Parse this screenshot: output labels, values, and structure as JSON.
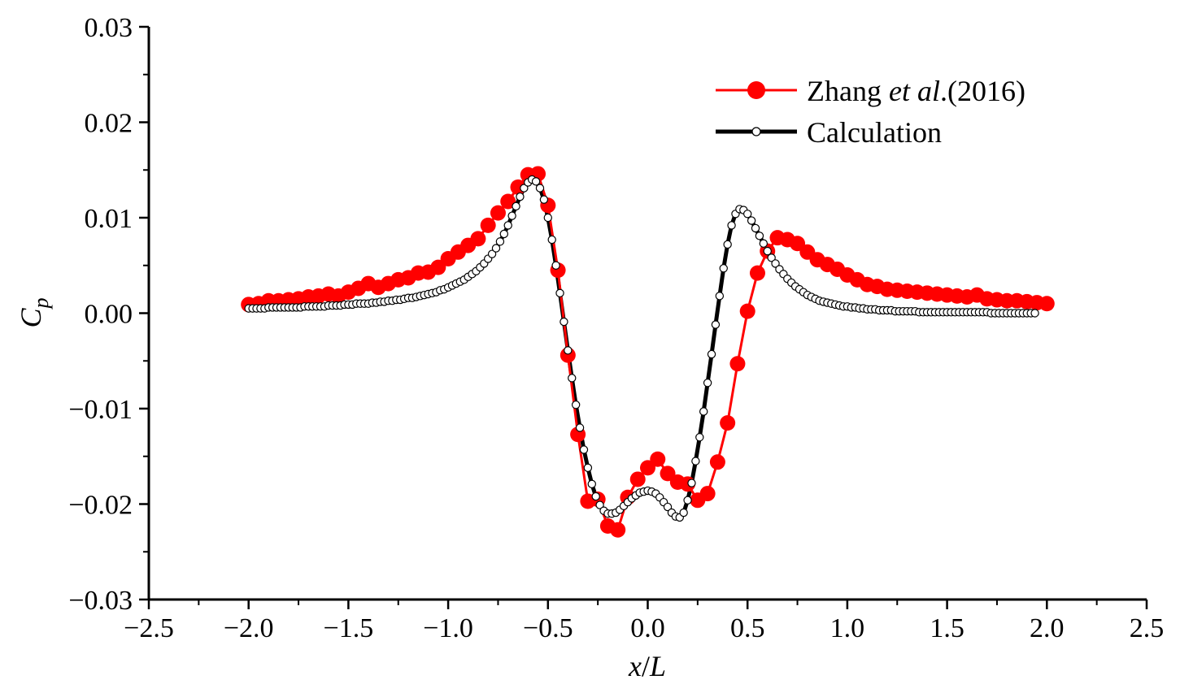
{
  "chart_data": {
    "type": "line",
    "title": "",
    "xlabel": {
      "main": "x",
      "sep": "/",
      "second": "L"
    },
    "ylabel": {
      "main": "C",
      "sub": "p"
    },
    "xlim": [
      -2.5,
      2.5
    ],
    "ylim": [
      -0.03,
      0.03
    ],
    "xticks": [
      -2.5,
      -2.0,
      -1.5,
      -1.0,
      -0.5,
      0.0,
      0.5,
      1.0,
      1.5,
      2.0,
      2.5
    ],
    "xtick_labels": [
      "−2.5",
      "−2.0",
      "−1.5",
      "−1.0",
      "−0.5",
      "0.0",
      "0.5",
      "1.0",
      "1.5",
      "2.0",
      "2.5"
    ],
    "yticks": [
      -0.03,
      -0.02,
      -0.01,
      0.0,
      0.01,
      0.02,
      0.03
    ],
    "ytick_labels": [
      "−0.03",
      "−0.02",
      "−0.01",
      "0.00",
      "0.01",
      "0.02",
      "0.03"
    ],
    "grid": false,
    "legend_position": "top-right",
    "series": [
      {
        "name": "Zhang et al.(2016)",
        "legend_parts": [
          "Zhang ",
          "et al",
          ".(2016)"
        ],
        "color": "#ff0000",
        "marker": "filled-circle",
        "x": [
          -2.0,
          -1.95,
          -1.9,
          -1.85,
          -1.8,
          -1.75,
          -1.7,
          -1.65,
          -1.6,
          -1.55,
          -1.5,
          -1.45,
          -1.4,
          -1.35,
          -1.3,
          -1.25,
          -1.2,
          -1.15,
          -1.1,
          -1.05,
          -1.0,
          -0.95,
          -0.9,
          -0.85,
          -0.8,
          -0.75,
          -0.7,
          -0.65,
          -0.6,
          -0.55,
          -0.5,
          -0.45,
          -0.4,
          -0.35,
          -0.3,
          -0.25,
          -0.2,
          -0.15,
          -0.1,
          -0.05,
          0.0,
          0.05,
          0.1,
          0.15,
          0.2,
          0.25,
          0.3,
          0.35,
          0.4,
          0.45,
          0.5,
          0.55,
          0.6,
          0.65,
          0.7,
          0.75,
          0.8,
          0.85,
          0.9,
          0.95,
          1.0,
          1.05,
          1.1,
          1.15,
          1.2,
          1.25,
          1.3,
          1.35,
          1.4,
          1.45,
          1.5,
          1.55,
          1.6,
          1.65,
          1.7,
          1.75,
          1.8,
          1.85,
          1.9,
          1.95,
          2.0
        ],
        "values": [
          0.0009,
          0.001,
          0.0013,
          0.0013,
          0.0014,
          0.0015,
          0.0017,
          0.0018,
          0.002,
          0.0018,
          0.0022,
          0.0026,
          0.0031,
          0.0027,
          0.0031,
          0.0035,
          0.0037,
          0.0042,
          0.0043,
          0.0048,
          0.0057,
          0.0064,
          0.0071,
          0.0078,
          0.0092,
          0.0105,
          0.0117,
          0.0132,
          0.0145,
          0.0146,
          0.0113,
          0.0045,
          -0.0044,
          -0.0127,
          -0.0197,
          -0.0195,
          -0.0223,
          -0.0227,
          -0.0193,
          -0.0174,
          -0.0162,
          -0.0153,
          -0.0168,
          -0.0177,
          -0.0179,
          -0.0196,
          -0.0189,
          -0.0156,
          -0.0115,
          -0.0053,
          0.0002,
          0.0042,
          0.0065,
          0.0079,
          0.0077,
          0.0073,
          0.0064,
          0.0056,
          0.0051,
          0.0046,
          0.004,
          0.0035,
          0.003,
          0.0028,
          0.0025,
          0.0024,
          0.0023,
          0.0022,
          0.0021,
          0.002,
          0.0019,
          0.0018,
          0.0017,
          0.0019,
          0.0015,
          0.0014,
          0.0013,
          0.0013,
          0.0012,
          0.0011,
          0.001
        ]
      },
      {
        "name": "Calculation",
        "legend_parts": [
          "Calculation"
        ],
        "color": "#000000",
        "marker": "open-circle",
        "x_start": -2.0,
        "x_step": 0.02,
        "values": [
          0.0005,
          0.0005,
          0.0005,
          0.0005,
          0.0005,
          0.0006,
          0.0006,
          0.0006,
          0.0006,
          0.0006,
          0.0006,
          0.0006,
          0.0006,
          0.0006,
          0.0007,
          0.0007,
          0.0007,
          0.0007,
          0.0007,
          0.0007,
          0.0008,
          0.0008,
          0.0008,
          0.0008,
          0.0009,
          0.0009,
          0.0009,
          0.001,
          0.001,
          0.001,
          0.001,
          0.0011,
          0.0011,
          0.0012,
          0.0012,
          0.0013,
          0.0013,
          0.0014,
          0.0014,
          0.0015,
          0.0016,
          0.0016,
          0.0017,
          0.0018,
          0.0019,
          0.002,
          0.0021,
          0.0022,
          0.0024,
          0.0025,
          0.0027,
          0.0029,
          0.0031,
          0.0033,
          0.0035,
          0.0038,
          0.0041,
          0.0044,
          0.0048,
          0.0052,
          0.0057,
          0.0062,
          0.0068,
          0.0075,
          0.0083,
          0.0092,
          0.0102,
          0.0112,
          0.0122,
          0.0131,
          0.0137,
          0.014,
          0.0138,
          0.0131,
          0.0119,
          0.01,
          0.0077,
          0.005,
          0.0021,
          -0.0009,
          -0.0039,
          -0.0068,
          -0.0096,
          -0.012,
          -0.0143,
          -0.0162,
          -0.0179,
          -0.0192,
          -0.0201,
          -0.0207,
          -0.021,
          -0.021,
          -0.0209,
          -0.0206,
          -0.0202,
          -0.0198,
          -0.0194,
          -0.0191,
          -0.0188,
          -0.0187,
          -0.0186,
          -0.0187,
          -0.0189,
          -0.0193,
          -0.0198,
          -0.0203,
          -0.0209,
          -0.0213,
          -0.0214,
          -0.0209,
          -0.0196,
          -0.0178,
          -0.0155,
          -0.013,
          -0.0103,
          -0.0073,
          -0.0043,
          -0.0012,
          0.0018,
          0.0047,
          0.0072,
          0.0092,
          0.0104,
          0.0109,
          0.0108,
          0.0104,
          0.0097,
          0.0089,
          0.0081,
          0.0073,
          0.0065,
          0.0058,
          0.0052,
          0.0046,
          0.0041,
          0.0036,
          0.0032,
          0.0028,
          0.0025,
          0.0022,
          0.0019,
          0.0017,
          0.0015,
          0.0013,
          0.0012,
          0.0011,
          0.001,
          0.0009,
          0.0008,
          0.0007,
          0.0007,
          0.0006,
          0.0006,
          0.0005,
          0.0005,
          0.0004,
          0.0004,
          0.0004,
          0.0003,
          0.0003,
          0.0003,
          0.0003,
          0.0002,
          0.0002,
          0.0002,
          0.0002,
          0.0002,
          0.0002,
          0.0001,
          0.0001,
          0.0001,
          0.0001,
          0.0001,
          0.0001,
          0.0001,
          0.0001,
          0.0001,
          0.0001,
          0.0001,
          0.0001,
          0.0001,
          0.0001,
          0.0001,
          0.0001,
          0.0001,
          0.0001,
          0.0,
          0.0,
          0.0,
          0.0,
          0.0,
          0.0,
          0.0,
          0.0,
          0.0,
          0.0,
          0.0,
          0.0
        ]
      }
    ]
  }
}
